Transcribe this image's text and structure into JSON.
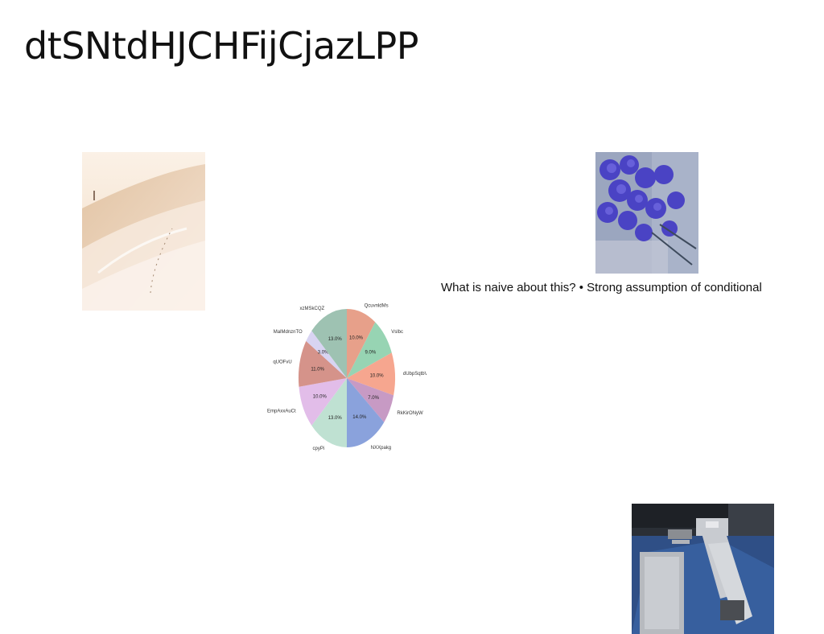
{
  "slide": {
    "title": "dtSNtdHJCHFijCjazLPP",
    "caption": "What is naive about this? • Strong assumption of conditional"
  },
  "images": [
    {
      "name": "dunes-photo",
      "subject": "sand dunes"
    },
    {
      "name": "roses-photo",
      "subject": "blue roses"
    },
    {
      "name": "living-room-photo",
      "subject": "living room with sofas"
    }
  ],
  "chart_data": {
    "type": "pie",
    "title": "",
    "slices": [
      {
        "label": "QcuvnldMs",
        "value": 10.0,
        "pct_label": "10.0%",
        "color": "#e7a08a"
      },
      {
        "label": "Vslbc",
        "value": 9.0,
        "pct_label": "9.0%",
        "color": "#97d4b3"
      },
      {
        "label": "dUbpSqtbV",
        "value": 10.0,
        "pct_label": "10.0%",
        "color": "#f6a68f"
      },
      {
        "label": "RkKirONyW",
        "value": 7.0,
        "pct_label": "7.0%",
        "color": "#c79ac4"
      },
      {
        "label": "NXXpakg",
        "value": 14.0,
        "pct_label": "14.0%",
        "color": "#8aa2dc"
      },
      {
        "label": "cpyPi",
        "value": 13.0,
        "pct_label": "13.0%",
        "color": "#bfe1d2"
      },
      {
        "label": "EmpAxxAuCt",
        "value": 10.0,
        "pct_label": "10.0%",
        "color": "#e2bde9"
      },
      {
        "label": "qUOFvU",
        "value": 11.0,
        "pct_label": "11.0%",
        "color": "#d5938a"
      },
      {
        "label": "MalMdnznTO",
        "value": 3.0,
        "pct_label": "3.0%",
        "color": "#d8d4f2"
      },
      {
        "label": "xzMSkCQZ",
        "value": 13.0,
        "pct_label": "13.0%",
        "color": "#9ec2b2"
      }
    ],
    "start": "top",
    "direction": "clockwise"
  }
}
